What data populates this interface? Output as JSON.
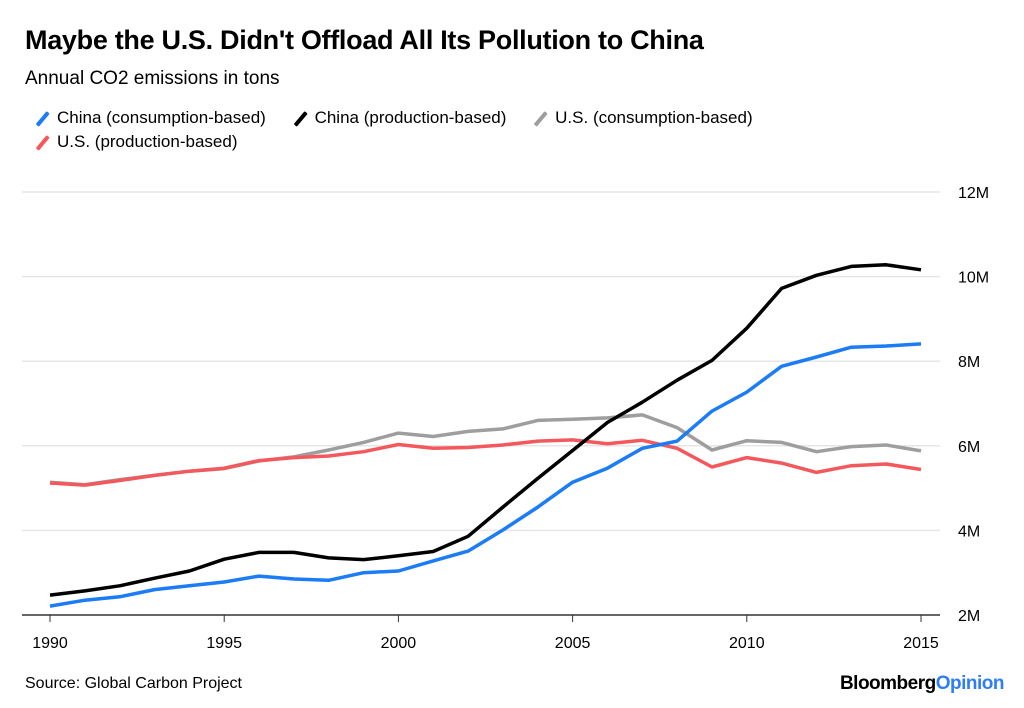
{
  "chart_data": {
    "type": "line",
    "title": "Maybe the U.S. Didn't Offload All Its Pollution to China",
    "subtitle": "Annual CO2 emissions in tons",
    "xlabel": "",
    "ylabel": "",
    "x": [
      1990,
      1991,
      1992,
      1993,
      1994,
      1995,
      1996,
      1997,
      1998,
      1999,
      2000,
      2001,
      2002,
      2003,
      2004,
      2005,
      2006,
      2007,
      2008,
      2009,
      2010,
      2011,
      2012,
      2013,
      2014,
      2015
    ],
    "xticks": [
      1990,
      1995,
      2000,
      2005,
      2010,
      2015
    ],
    "xtick_labels": [
      "1990",
      "1995",
      "2000",
      "2005",
      "2010",
      "2015"
    ],
    "ylim": [
      2,
      12
    ],
    "yticks": [
      2,
      4,
      6,
      8,
      10,
      12
    ],
    "ytick_labels": [
      "2M",
      "4M",
      "6M",
      "8M",
      "10M",
      "12M"
    ],
    "y_axis_side": "right",
    "grid": true,
    "legend_position": "top-left",
    "series": [
      {
        "name": "China (consumption-based)",
        "color": "#1b7cf5",
        "values": [
          2.21,
          2.35,
          2.43,
          2.6,
          2.69,
          2.78,
          2.92,
          2.85,
          2.82,
          3.0,
          3.04,
          3.28,
          3.51,
          4.01,
          4.55,
          5.14,
          5.47,
          5.94,
          6.11,
          6.82,
          7.27,
          7.88,
          8.1,
          8.33,
          8.36,
          8.41
        ]
      },
      {
        "name": "China (production-based)",
        "color": "#000000",
        "values": [
          2.47,
          2.57,
          2.69,
          2.87,
          3.04,
          3.32,
          3.48,
          3.48,
          3.35,
          3.31,
          3.4,
          3.5,
          3.86,
          4.55,
          5.23,
          5.89,
          6.55,
          7.03,
          7.55,
          8.02,
          8.78,
          9.72,
          10.03,
          10.24,
          10.28,
          10.16
        ]
      },
      {
        "name": "U.S. (consumption-based)",
        "color": "#9e9e9e",
        "values": [
          5.14,
          5.08,
          5.2,
          5.3,
          5.4,
          5.46,
          5.64,
          5.74,
          5.9,
          6.08,
          6.3,
          6.22,
          6.34,
          6.4,
          6.6,
          6.63,
          6.66,
          6.73,
          6.43,
          5.9,
          6.12,
          6.08,
          5.86,
          5.98,
          6.02,
          5.88
        ]
      },
      {
        "name": "U.S. (production-based)",
        "color": "#f3595c",
        "values": [
          5.12,
          5.07,
          5.18,
          5.3,
          5.4,
          5.47,
          5.65,
          5.72,
          5.76,
          5.86,
          6.03,
          5.94,
          5.96,
          6.02,
          6.11,
          6.14,
          6.05,
          6.13,
          5.94,
          5.5,
          5.72,
          5.59,
          5.37,
          5.53,
          5.57,
          5.44
        ]
      }
    ]
  },
  "footer": {
    "source": "Source: Global Carbon Project",
    "brand_part1": "Bloomberg",
    "brand_part2": "Opinion"
  }
}
